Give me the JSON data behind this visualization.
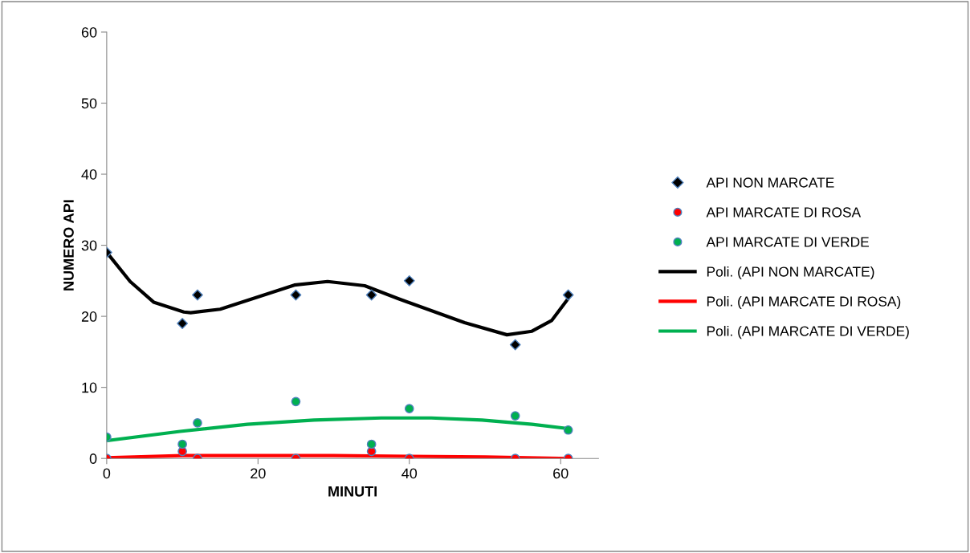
{
  "chart_data": {
    "type": "scatter",
    "xlabel": "MINUTI",
    "ylabel": "NUMERO API",
    "x": [
      0,
      10,
      12,
      25,
      35,
      40,
      54,
      61
    ],
    "series": [
      {
        "name": "API NON MARCATE",
        "color": "#000000",
        "marker": "diamond",
        "values": [
          29,
          19,
          23,
          23,
          23,
          25,
          16,
          23
        ]
      },
      {
        "name": "API MARCATE DI ROSA",
        "color": "#ff0000",
        "marker": "circle",
        "values": [
          0,
          1,
          0,
          0,
          1,
          0,
          0,
          0
        ]
      },
      {
        "name": "API MARCATE DI VERDE",
        "color": "#00b050",
        "marker": "circle",
        "values": [
          3,
          2,
          5,
          8,
          2,
          7,
          6,
          4
        ]
      },
      {
        "name": "Poli. (API NON MARCATE)",
        "type": "line",
        "color": "#000000",
        "marker": "none",
        "x": [
          0,
          3.1,
          6.2,
          10.2,
          11.1,
          15,
          19.9,
          24.8,
          29.2,
          34.1,
          38.5,
          42.9,
          47.3,
          52.9,
          56.2,
          58.8,
          61
        ],
        "values": [
          29,
          24.9,
          22,
          20.6,
          20.5,
          21,
          22.7,
          24.4,
          24.9,
          24.3,
          22.5,
          20.8,
          19.1,
          17.4,
          17.9,
          19.4,
          22.5
        ]
      },
      {
        "name": "Poli. (API MARCATE DI ROSA)",
        "type": "line",
        "color": "#ff0000",
        "marker": "none",
        "x": [
          0,
          10,
          20,
          30,
          40,
          50,
          61
        ],
        "values": [
          0.1,
          0.4,
          0.4,
          0.4,
          0.3,
          0.2,
          0
        ]
      },
      {
        "name": "Poli. (API MARCATE DI VERDE)",
        "type": "line",
        "color": "#00b050",
        "marker": "none",
        "x": [
          0,
          9.7,
          18.6,
          27.4,
          36.3,
          42.9,
          49.6,
          56.2,
          61
        ],
        "values": [
          2.5,
          3.8,
          4.8,
          5.4,
          5.7,
          5.7,
          5.4,
          4.8,
          4.2
        ]
      }
    ],
    "xlim": [
      0,
      65
    ],
    "xticks": [
      0,
      20,
      40,
      60
    ],
    "ylim": [
      0,
      60
    ],
    "yticks": [
      0,
      10,
      20,
      30,
      40,
      50,
      60
    ],
    "grid": false,
    "legend": "right",
    "line_style": "solid"
  }
}
